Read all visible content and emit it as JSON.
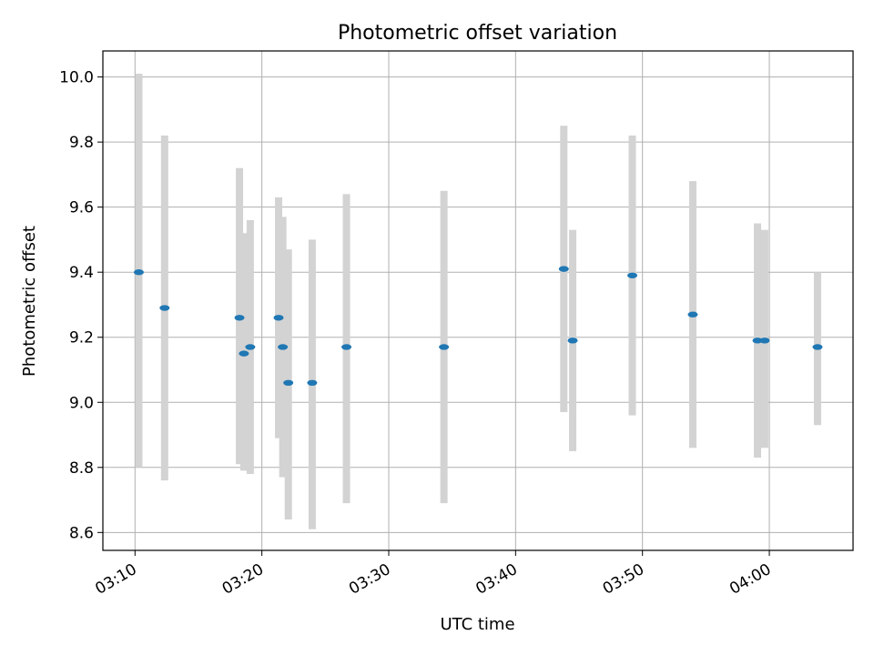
{
  "chart_data": {
    "type": "scatter",
    "title": "Photometric offset variation",
    "xlabel": "UTC time",
    "ylabel": "Photometric offset",
    "x_axis": "time",
    "xlim": [
      "03:07:28",
      "04:06:36"
    ],
    "ylim": [
      8.545,
      10.08
    ],
    "x_ticks": [
      {
        "value": "03:10:00",
        "label": "03:10"
      },
      {
        "value": "03:20:00",
        "label": "03:20"
      },
      {
        "value": "03:30:00",
        "label": "03:30"
      },
      {
        "value": "03:40:00",
        "label": "03:40"
      },
      {
        "value": "03:50:00",
        "label": "03:50"
      },
      {
        "value": "04:00:00",
        "label": "04:00"
      }
    ],
    "y_ticks": [
      {
        "value": 8.6,
        "label": "8.6"
      },
      {
        "value": 8.8,
        "label": "8.8"
      },
      {
        "value": 9.0,
        "label": "9.0"
      },
      {
        "value": 9.2,
        "label": "9.2"
      },
      {
        "value": 9.4,
        "label": "9.4"
      },
      {
        "value": 9.6,
        "label": "9.6"
      },
      {
        "value": 9.8,
        "label": "9.8"
      },
      {
        "value": 10.0,
        "label": "10.0"
      }
    ],
    "grid": true,
    "point_color": "#1f77b4",
    "errorbar_color": "#d3d3d3",
    "points": [
      {
        "x": "03:10:18",
        "y": 9.4,
        "ylow": 8.8,
        "yhigh": 10.01
      },
      {
        "x": "03:12:20",
        "y": 9.29,
        "ylow": 8.76,
        "yhigh": 9.82
      },
      {
        "x": "03:18:14",
        "y": 9.26,
        "ylow": 8.81,
        "yhigh": 9.72
      },
      {
        "x": "03:18:35",
        "y": 9.15,
        "ylow": 8.79,
        "yhigh": 9.52
      },
      {
        "x": "03:19:05",
        "y": 9.17,
        "ylow": 8.78,
        "yhigh": 9.56
      },
      {
        "x": "03:21:19",
        "y": 9.26,
        "ylow": 8.89,
        "yhigh": 9.63
      },
      {
        "x": "03:21:39",
        "y": 9.17,
        "ylow": 8.77,
        "yhigh": 9.57
      },
      {
        "x": "03:22:05",
        "y": 9.06,
        "ylow": 8.64,
        "yhigh": 9.47
      },
      {
        "x": "03:23:58",
        "y": 9.06,
        "ylow": 8.61,
        "yhigh": 9.5
      },
      {
        "x": "03:26:40",
        "y": 9.17,
        "ylow": 8.69,
        "yhigh": 9.64
      },
      {
        "x": "03:34:21",
        "y": 9.17,
        "ylow": 8.69,
        "yhigh": 9.65
      },
      {
        "x": "03:43:48",
        "y": 9.41,
        "ylow": 8.97,
        "yhigh": 9.85
      },
      {
        "x": "03:44:30",
        "y": 9.19,
        "ylow": 8.85,
        "yhigh": 9.53
      },
      {
        "x": "03:49:12",
        "y": 9.39,
        "ylow": 8.96,
        "yhigh": 9.82
      },
      {
        "x": "03:53:58",
        "y": 9.27,
        "ylow": 8.86,
        "yhigh": 9.68
      },
      {
        "x": "03:59:04",
        "y": 9.19,
        "ylow": 8.83,
        "yhigh": 9.55
      },
      {
        "x": "03:59:38",
        "y": 9.19,
        "ylow": 8.86,
        "yhigh": 9.53
      },
      {
        "x": "04:03:48",
        "y": 9.17,
        "ylow": 8.93,
        "yhigh": 9.4
      }
    ]
  }
}
